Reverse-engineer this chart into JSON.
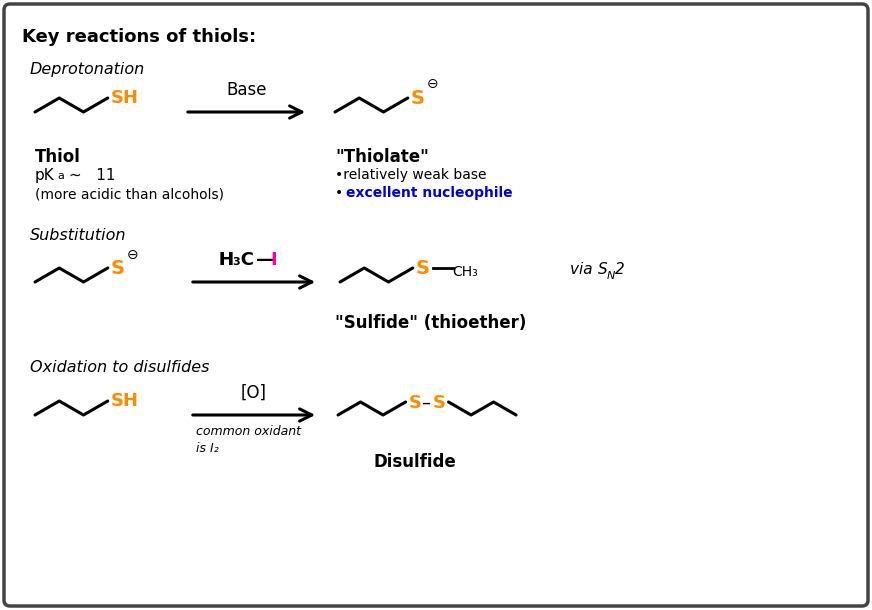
{
  "title": "Key reactions of thiols:",
  "bg_color": "#ffffff",
  "border_color": "#444444",
  "text_color": "#000000",
  "orange_color": "#FF8C00",
  "blue_color": "#0000CC",
  "magenta_color": "#FF00AA",
  "section1_label": "Deprotonation",
  "section2_label": "Substitution",
  "section3_label": "Oxidation to disulfides",
  "thiol_label": "Thiol",
  "pka_sub": "(more acidic than alcohols)",
  "thiolate_label": "\"Thiolate\"",
  "weak_base": "•relatively weak base",
  "excellent_nuc": "excellent nucleophile",
  "base_arrow_label": "Base",
  "sulfide_label": "\"Sulfide\" (thioether)",
  "oxidant_label": "[O]",
  "disulfide_label": "Disulfide",
  "figw": 8.72,
  "figh": 6.1,
  "dpi": 100
}
